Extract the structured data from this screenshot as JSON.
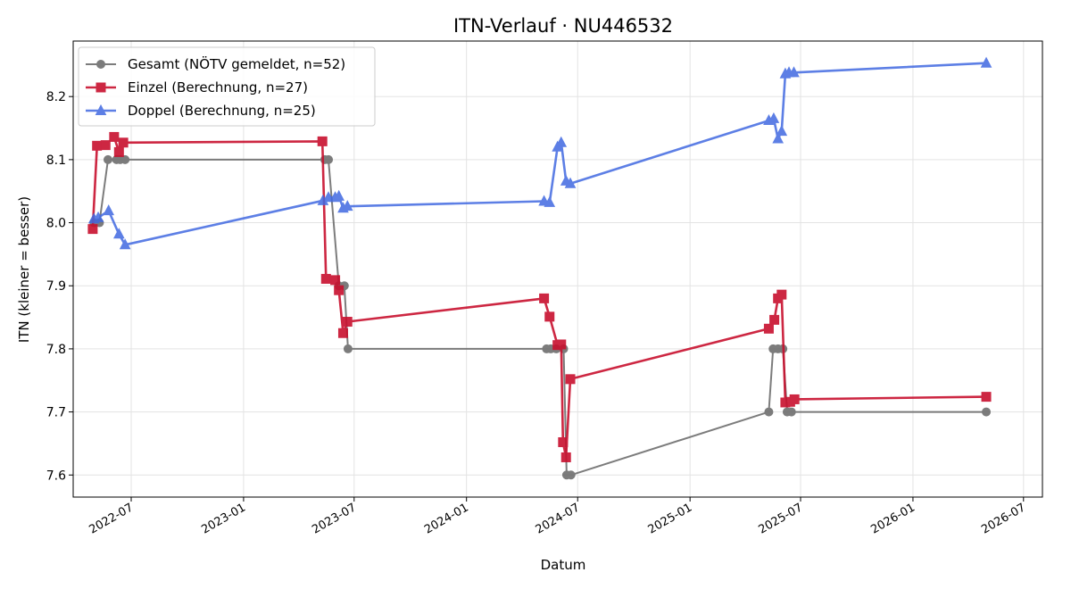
{
  "chart_data": {
    "type": "line",
    "title": "ITN-Verlauf · NU446532",
    "xlabel": "Datum",
    "ylabel": "ITN  (kleiner = besser)",
    "xlim": [
      "2022-03-28",
      "2026-08-01"
    ],
    "ylim": [
      7.565,
      8.288
    ],
    "grid": true,
    "legend_position": "top-left",
    "x_ticks": [
      "2022-07",
      "2023-01",
      "2023-07",
      "2024-01",
      "2024-07",
      "2025-01",
      "2025-07",
      "2026-01",
      "2026-07"
    ],
    "y_ticks": [
      7.6,
      7.7,
      7.8,
      7.9,
      8.0,
      8.1,
      8.2
    ],
    "series": [
      {
        "name": "Gesamt (NÖTV gemeldet, n=52)",
        "color": "#666666",
        "marker": "circle",
        "points": [
          {
            "x": "2022-05-01",
            "y": 8.0
          },
          {
            "x": "2022-05-10",
            "y": 8.0
          },
          {
            "x": "2022-05-24",
            "y": 8.1
          },
          {
            "x": "2022-06-07",
            "y": 8.1
          },
          {
            "x": "2022-06-13",
            "y": 8.1
          },
          {
            "x": "2022-06-21",
            "y": 8.1
          },
          {
            "x": "2023-05-14",
            "y": 8.1
          },
          {
            "x": "2023-05-20",
            "y": 8.1
          },
          {
            "x": "2023-06-06",
            "y": 7.9
          },
          {
            "x": "2023-06-15",
            "y": 7.9
          },
          {
            "x": "2023-06-21",
            "y": 7.8
          },
          {
            "x": "2024-05-11",
            "y": 7.8
          },
          {
            "x": "2024-05-18",
            "y": 7.8
          },
          {
            "x": "2024-05-27",
            "y": 7.8
          },
          {
            "x": "2024-06-08",
            "y": 7.8
          },
          {
            "x": "2024-06-13",
            "y": 7.6
          },
          {
            "x": "2024-06-20",
            "y": 7.6
          },
          {
            "x": "2025-05-10",
            "y": 7.7
          },
          {
            "x": "2025-05-17",
            "y": 7.8
          },
          {
            "x": "2025-05-25",
            "y": 7.8
          },
          {
            "x": "2025-06-02",
            "y": 7.8
          },
          {
            "x": "2025-06-09",
            "y": 7.7
          },
          {
            "x": "2025-06-16",
            "y": 7.7
          },
          {
            "x": "2026-05-01",
            "y": 7.7
          }
        ]
      },
      {
        "name": "Einzel (Berechnung, n=27)",
        "color": "#c8102e",
        "marker": "square",
        "points": [
          {
            "x": "2022-04-29",
            "y": 7.99
          },
          {
            "x": "2022-05-06",
            "y": 8.122
          },
          {
            "x": "2022-05-20",
            "y": 8.123
          },
          {
            "x": "2022-06-03",
            "y": 8.136
          },
          {
            "x": "2022-06-11",
            "y": 8.112
          },
          {
            "x": "2022-06-18",
            "y": 8.127
          },
          {
            "x": "2023-05-10",
            "y": 8.129
          },
          {
            "x": "2023-05-16",
            "y": 7.911
          },
          {
            "x": "2023-05-31",
            "y": 7.909
          },
          {
            "x": "2023-06-06",
            "y": 7.893
          },
          {
            "x": "2023-06-13",
            "y": 7.825
          },
          {
            "x": "2023-06-20",
            "y": 7.843
          },
          {
            "x": "2024-05-07",
            "y": 7.88
          },
          {
            "x": "2024-05-16",
            "y": 7.851
          },
          {
            "x": "2024-05-29",
            "y": 7.806
          },
          {
            "x": "2024-06-04",
            "y": 7.807
          },
          {
            "x": "2024-06-07",
            "y": 7.652
          },
          {
            "x": "2024-06-12",
            "y": 7.628
          },
          {
            "x": "2024-06-19",
            "y": 7.752
          },
          {
            "x": "2025-05-10",
            "y": 7.832
          },
          {
            "x": "2025-05-19",
            "y": 7.846
          },
          {
            "x": "2025-05-25",
            "y": 7.88
          },
          {
            "x": "2025-05-31",
            "y": 7.886
          },
          {
            "x": "2025-06-06",
            "y": 7.715
          },
          {
            "x": "2025-06-14",
            "y": 7.716
          },
          {
            "x": "2025-06-21",
            "y": 7.72
          },
          {
            "x": "2026-05-01",
            "y": 7.724
          }
        ]
      },
      {
        "name": "Doppel (Berechnung, n=25)",
        "color": "#4169e1",
        "marker": "triangle",
        "points": [
          {
            "x": "2022-05-01",
            "y": 8.006
          },
          {
            "x": "2022-05-08",
            "y": 8.008
          },
          {
            "x": "2022-05-25",
            "y": 8.019
          },
          {
            "x": "2022-06-11",
            "y": 7.982
          },
          {
            "x": "2022-06-21",
            "y": 7.965
          },
          {
            "x": "2023-05-11",
            "y": 8.035
          },
          {
            "x": "2023-05-20",
            "y": 8.04
          },
          {
            "x": "2023-05-31",
            "y": 8.04
          },
          {
            "x": "2023-06-06",
            "y": 8.042
          },
          {
            "x": "2023-06-13",
            "y": 8.023
          },
          {
            "x": "2023-06-20",
            "y": 8.026
          },
          {
            "x": "2024-05-07",
            "y": 8.034
          },
          {
            "x": "2024-05-16",
            "y": 8.032
          },
          {
            "x": "2024-05-29",
            "y": 8.12
          },
          {
            "x": "2024-06-04",
            "y": 8.127
          },
          {
            "x": "2024-06-12",
            "y": 8.066
          },
          {
            "x": "2024-06-19",
            "y": 8.062
          },
          {
            "x": "2025-05-10",
            "y": 8.162
          },
          {
            "x": "2025-05-18",
            "y": 8.165
          },
          {
            "x": "2025-05-25",
            "y": 8.133
          },
          {
            "x": "2025-05-31",
            "y": 8.145
          },
          {
            "x": "2025-06-06",
            "y": 8.236
          },
          {
            "x": "2025-06-12",
            "y": 8.238
          },
          {
            "x": "2025-06-20",
            "y": 8.238
          },
          {
            "x": "2026-05-01",
            "y": 8.253
          }
        ]
      }
    ]
  }
}
